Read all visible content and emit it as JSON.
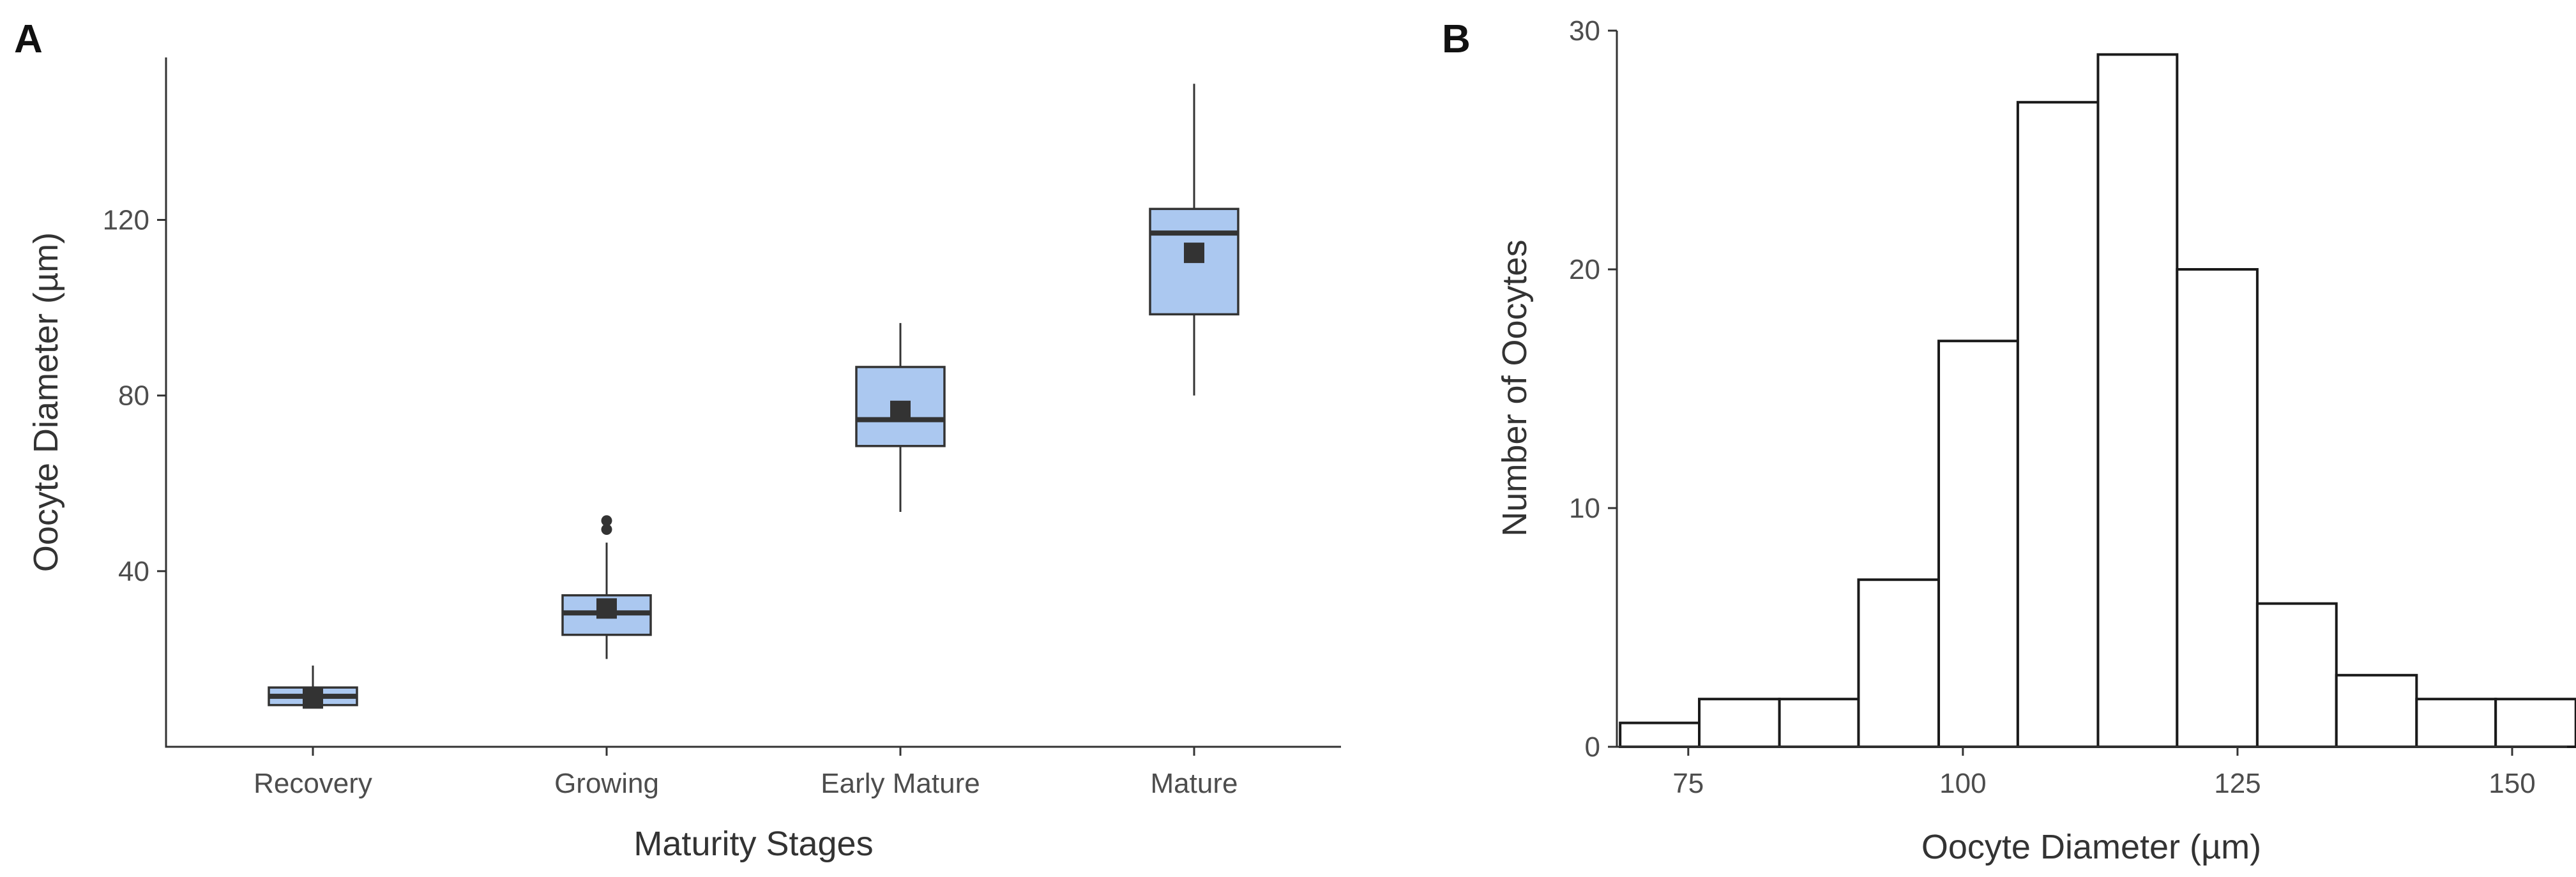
{
  "chart_data": [
    {
      "type": "box",
      "panel_label": "A",
      "xlabel": "Maturity Stages",
      "ylabel": "Oocyte Diameter (µm)",
      "ylim": [
        0,
        157
      ],
      "yticks": [
        40,
        80,
        120
      ],
      "categories": [
        "Recovery",
        "Growing",
        "Early Mature",
        "Mature"
      ],
      "fill_color": "#abc8f0",
      "boxes": [
        {
          "category": "Recovery",
          "min": 9,
          "q1": 9.5,
          "median": 11.5,
          "q3": 13.5,
          "max": 18.5,
          "mean": 11,
          "outliers": []
        },
        {
          "category": "Growing",
          "min": 20,
          "q1": 25.5,
          "median": 30.5,
          "q3": 34.5,
          "max": 46.5,
          "mean": 31.5,
          "outliers": [
            49.5,
            51.5
          ]
        },
        {
          "category": "Early Mature",
          "min": 53.5,
          "q1": 68.5,
          "median": 74.5,
          "q3": 86.5,
          "max": 96.5,
          "mean": 76.5,
          "outliers": []
        },
        {
          "category": "Mature",
          "min": 80,
          "q1": 98.5,
          "median": 117,
          "q3": 122.5,
          "max": 151,
          "mean": 112.5,
          "outliers": []
        }
      ]
    },
    {
      "type": "histogram",
      "panel_label": "B",
      "xlabel": "Oocyte Diameter (µm)",
      "ylabel": "Number of Oocytes",
      "xlim": [
        68.5,
        155
      ],
      "ylim": [
        0,
        30
      ],
      "xticks": [
        75,
        100,
        125,
        150
      ],
      "yticks": [
        0,
        10,
        20,
        30
      ],
      "bin_edges": [
        68.8,
        76.0,
        83.3,
        90.5,
        97.8,
        105.0,
        112.3,
        119.5,
        126.8,
        134.0,
        141.3,
        148.5,
        155.8
      ],
      "counts": [
        1,
        2,
        2,
        7,
        17,
        27,
        29,
        20,
        6,
        3,
        2,
        2
      ]
    }
  ]
}
